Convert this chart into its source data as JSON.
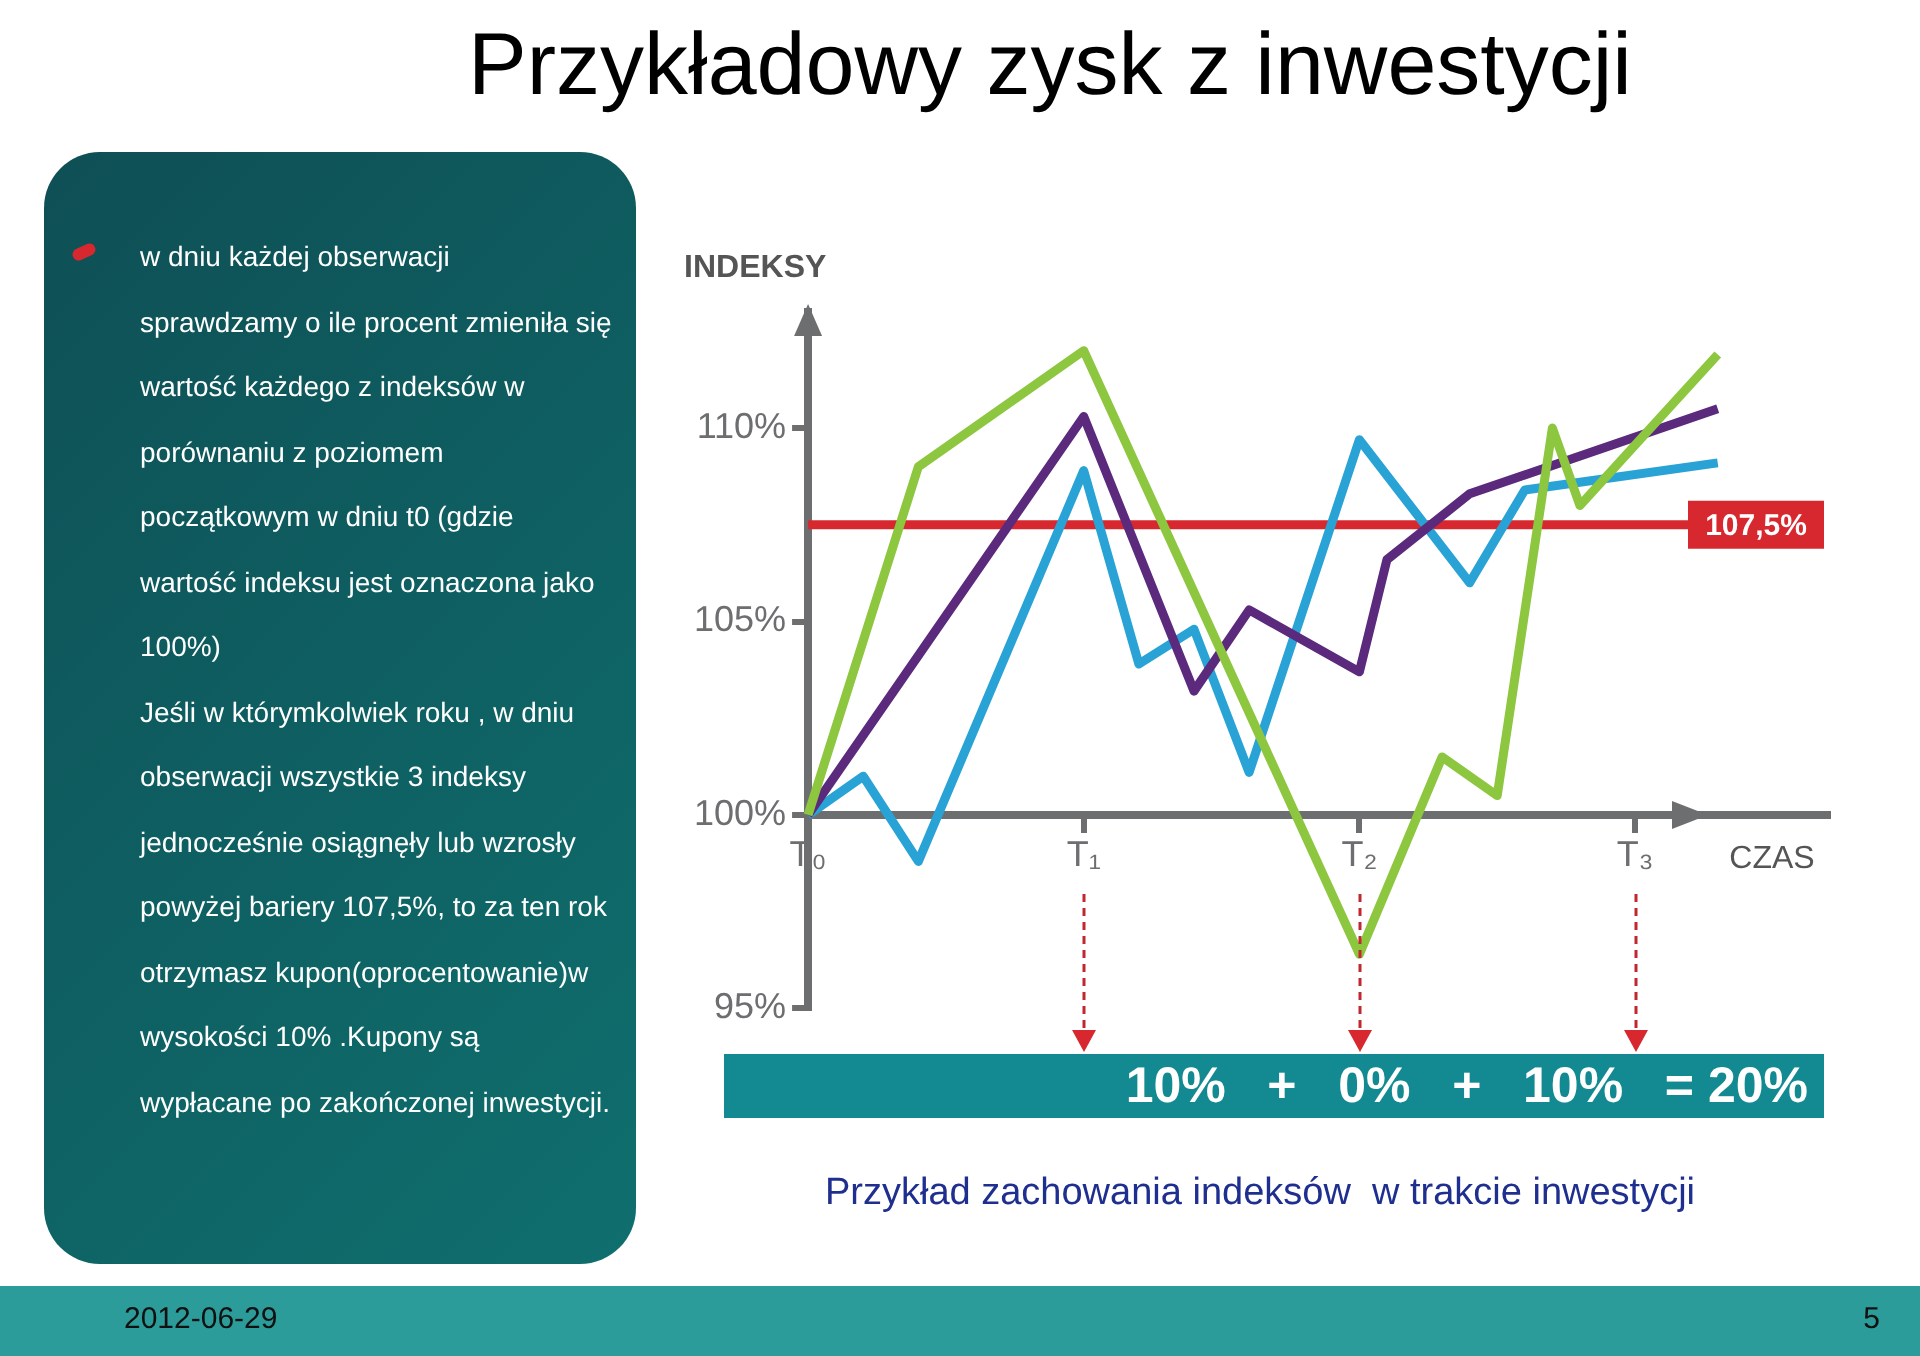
{
  "chart_data": {
    "type": "line",
    "title": "Przykładowy zysk z inwestycji",
    "ylabel": "INDEKSY",
    "xlabel": "CZAS",
    "ylim": [
      95,
      113
    ],
    "categories": [
      "T₀",
      null,
      null,
      null,
      null,
      null,
      null,
      null,
      null,
      null,
      "T₁",
      null,
      null,
      null,
      null,
      null,
      null,
      null,
      null,
      null,
      "T₂",
      null,
      null,
      null,
      null,
      null,
      null,
      null,
      null,
      null,
      "T₃",
      null,
      null,
      null,
      null,
      null,
      null,
      null
    ],
    "yticks": [
      {
        "value": 95,
        "label": "95%"
      },
      {
        "value": 100,
        "label": "100%"
      },
      {
        "value": 105,
        "label": "105%"
      },
      {
        "value": 110,
        "label": "110%"
      }
    ],
    "grid": false,
    "legend": false,
    "marker": "none",
    "line_style": "solid",
    "series": [
      {
        "color": "#8dc63f",
        "values": [
          100,
          null,
          null,
          null,
          109.0,
          null,
          null,
          null,
          null,
          null,
          112.0,
          null,
          null,
          null,
          null,
          null,
          null,
          null,
          null,
          null,
          96.4,
          null,
          null,
          101.5,
          null,
          100.5,
          null,
          110.0,
          108.0,
          null,
          null,
          null,
          null,
          111.9,
          null,
          null,
          null,
          null
        ]
      },
      {
        "color": "#5b2a7c",
        "values": [
          100,
          null,
          null,
          null,
          null,
          null,
          null,
          null,
          null,
          null,
          110.3,
          null,
          null,
          null,
          103.2,
          null,
          105.3,
          null,
          null,
          null,
          103.7,
          106.6,
          null,
          null,
          108.3,
          null,
          null,
          null,
          null,
          null,
          null,
          null,
          null,
          110.5,
          null,
          null,
          null,
          null
        ]
      },
      {
        "color": "#29a3d6",
        "values": [
          100,
          null,
          101.0,
          null,
          98.8,
          null,
          null,
          null,
          null,
          null,
          108.9,
          null,
          103.9,
          null,
          104.8,
          null,
          101.1,
          null,
          null,
          null,
          109.7,
          null,
          null,
          null,
          106.0,
          null,
          108.4,
          null,
          null,
          null,
          null,
          null,
          null,
          109.1,
          null,
          null,
          null,
          null
        ]
      }
    ],
    "ref_lines": [
      {
        "axis": "y",
        "value": 107.5,
        "label": "107,5%",
        "color": "#d7282f"
      }
    ],
    "annotations": [
      "w dniu każdej obserwacji sprawdzamy  o ile procent zmieniła się wartość każdego z indeksów w porównaniu z poziomem początkowym w dniu t0 (gdzie wartość indeksu jest oznaczona jako 100%)",
      "Jeśli w którymkolwiek roku , w dniu obserwacji wszystkie 3 indeksy jednocześnie osiągnęły lub wzrosły powyżej bariery 107,5%, to za ten rok otrzymasz kupon(oprocentowanie)w wysokości 10% .Kupony są wypłacane po zakończonej inwestycji.",
      "10%   +   0%   +   10%   = 20%",
      "Przykład zachowania indeksów  w trakcie inwestycji",
      "2012-06-29",
      "5"
    ]
  }
}
